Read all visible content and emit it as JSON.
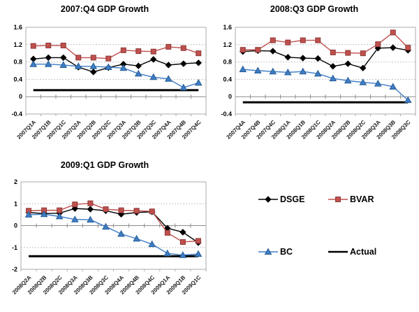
{
  "chart_data": [
    {
      "type": "line",
      "title": "2007:Q4 GDP Growth",
      "categories": [
        "2007Q1A",
        "2007Q1B",
        "2007Q1C",
        "2007Q2A",
        "2007Q2B",
        "2007Q2C",
        "2007Q3A",
        "2007Q3B",
        "2007Q3C",
        "2007Q4A",
        "2007Q4B",
        "2007Q4C"
      ],
      "series": [
        {
          "name": "DSGE",
          "values": [
            0.87,
            0.9,
            0.9,
            0.68,
            0.57,
            0.67,
            0.75,
            0.71,
            0.86,
            0.73,
            0.76,
            0.78
          ]
        },
        {
          "name": "BVAR",
          "values": [
            1.17,
            1.18,
            1.18,
            0.9,
            0.9,
            0.88,
            1.07,
            1.05,
            1.04,
            1.15,
            1.12,
            1.0
          ]
        },
        {
          "name": "BC",
          "values": [
            0.75,
            0.75,
            0.73,
            0.7,
            0.7,
            0.68,
            0.66,
            0.53,
            0.45,
            0.41,
            0.21,
            0.32
          ]
        },
        {
          "name": "Actual",
          "constant_value": 0.15
        }
      ],
      "ylim": [
        -0.4,
        1.6
      ],
      "yticks": [
        1.6,
        1.2,
        0.8,
        0.4,
        0,
        -0.4
      ],
      "grid": "horizontal-dashed",
      "legend_position": "none"
    },
    {
      "type": "line",
      "title": "2008:Q3 GDP Growth",
      "categories": [
        "2007Q4A",
        "2007Q4B",
        "2007Q4C",
        "2008Q1A",
        "2008Q1B",
        "2008Q1C",
        "2008Q2A",
        "2008Q2B",
        "2008Q2C",
        "2008Q3A",
        "2008Q3B",
        "2008Q3C"
      ],
      "series": [
        {
          "name": "DSGE",
          "values": [
            1.04,
            1.06,
            1.05,
            0.91,
            0.89,
            0.88,
            0.7,
            0.76,
            0.66,
            1.12,
            1.13,
            1.07
          ]
        },
        {
          "name": "BVAR",
          "values": [
            1.08,
            1.08,
            1.3,
            1.25,
            1.3,
            1.3,
            1.02,
            1.01,
            1.0,
            1.21,
            1.48,
            1.13
          ]
        },
        {
          "name": "BC",
          "values": [
            0.63,
            0.6,
            0.58,
            0.56,
            0.58,
            0.53,
            0.42,
            0.37,
            0.33,
            0.3,
            0.23,
            -0.08
          ]
        },
        {
          "name": "Actual",
          "constant_value": -0.13
        }
      ],
      "ylim": [
        -0.4,
        1.6
      ],
      "yticks": [
        1.6,
        1.2,
        0.8,
        0.4,
        0,
        -0.4
      ],
      "grid": "horizontal-dashed",
      "legend_position": "none"
    },
    {
      "type": "line",
      "title": "2009:Q1 GDP Growth",
      "categories": [
        "2008Q2A",
        "2008Q2B",
        "2008Q2C",
        "2008Q3A",
        "2008Q3B",
        "2008Q3C",
        "2008Q4A",
        "2008Q4B",
        "2008Q4C",
        "2009Q1A",
        "2009Q1B",
        "2009Q1C"
      ],
      "series": [
        {
          "name": "DSGE",
          "values": [
            0.6,
            0.55,
            0.57,
            0.78,
            0.75,
            0.68,
            0.52,
            0.6,
            0.63,
            -0.12,
            -0.3,
            -0.78
          ]
        },
        {
          "name": "BVAR",
          "values": [
            0.68,
            0.7,
            0.7,
            0.97,
            1.02,
            0.75,
            0.7,
            0.68,
            0.65,
            -0.33,
            -0.75,
            -0.7
          ]
        },
        {
          "name": "BC",
          "values": [
            0.5,
            0.52,
            0.42,
            0.28,
            0.27,
            -0.05,
            -0.38,
            -0.6,
            -0.85,
            -1.27,
            -1.35,
            -1.3
          ]
        },
        {
          "name": "Actual",
          "constant_value": -1.4
        }
      ],
      "ylim": [
        -2,
        2
      ],
      "yticks": [
        2,
        1,
        0,
        -1,
        -2
      ],
      "grid": "horizontal-dashed",
      "legend_position": "none"
    }
  ],
  "legend": {
    "items": [
      {
        "label": "DSGE",
        "series": "DSGE"
      },
      {
        "label": "BVAR",
        "series": "BVAR"
      },
      {
        "label": "BC",
        "series": "BC"
      },
      {
        "label": "Actual",
        "series": "Actual"
      }
    ]
  },
  "styles": {
    "series": {
      "DSGE": {
        "color": "#000000",
        "edge": "#000000",
        "marker": "diamond"
      },
      "BVAR": {
        "color": "#C0504D",
        "edge": "#8C3A38",
        "marker": "square"
      },
      "BC": {
        "color": "#3E7DC6",
        "edge": "#275E94",
        "marker": "triangle"
      },
      "Actual": {
        "color": "#000000",
        "edge": "#000000",
        "marker": "line"
      }
    },
    "gridline_color": "#C6C6C6",
    "axis_color": "#8C8C8C",
    "border_color": "#ABABAB"
  }
}
